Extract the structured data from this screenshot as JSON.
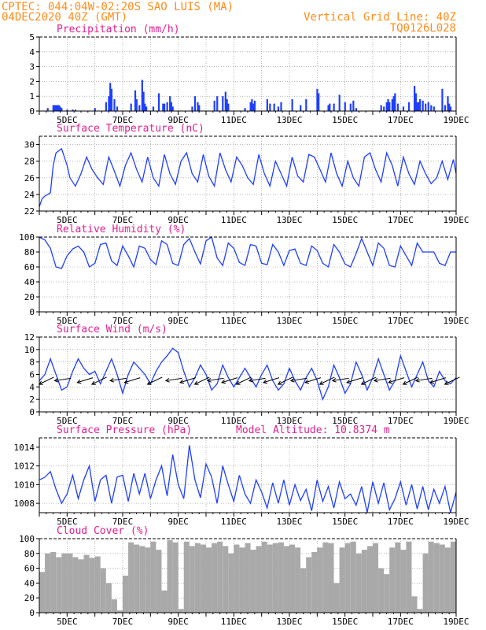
{
  "header": {
    "line1_left": "CPTEC:  044:04W-02:20S  SAO LUIS (MA)",
    "line2_left": "04DEC2020 40Z (GMT)",
    "line2_right": "Vertical Grid Line: 40Z",
    "line3_right": "TQ0126L028"
  },
  "colors": {
    "header": "#ff8c1a",
    "title": "#e0208f",
    "series": "#1f3fff",
    "cloud": "#a9a9a9",
    "grid": "#888888"
  },
  "chart_data": [
    {
      "id": "precip",
      "type": "bar",
      "title": "Precipitation (mm/h)",
      "ylim": [
        0,
        5
      ],
      "yticks": [
        0,
        1,
        2,
        3,
        4,
        5
      ],
      "xticks": [
        "5DEC",
        "7DEC",
        "9DEC",
        "11DEC",
        "13DEC",
        "15DEC",
        "17DEC",
        "19DEC"
      ],
      "x": [
        4.3,
        4.5,
        4.55,
        4.6,
        4.65,
        4.7,
        4.75,
        4.8,
        5.0,
        5.2,
        5.3,
        6.0,
        6.4,
        6.5,
        6.55,
        6.6,
        6.7,
        6.8,
        7.3,
        7.45,
        7.5,
        7.6,
        7.7,
        7.75,
        7.8,
        7.85,
        8.1,
        8.3,
        8.45,
        8.5,
        8.6,
        8.7,
        8.75,
        8.8,
        9.5,
        9.6,
        9.7,
        9.75,
        10.3,
        10.4,
        10.6,
        10.7,
        10.75,
        10.8,
        11.4,
        11.6,
        11.65,
        11.7,
        11.75,
        12.2,
        12.3,
        12.45,
        12.6,
        12.7,
        13.1,
        13.4,
        13.6,
        14.0,
        14.05,
        14.4,
        14.45,
        14.6,
        14.8,
        15.0,
        15.2,
        15.3,
        15.4,
        16.3,
        16.4,
        16.5,
        16.55,
        16.6,
        16.7,
        16.75,
        16.8,
        16.9,
        17.1,
        17.3,
        17.5,
        17.55,
        17.6,
        17.65,
        17.7,
        17.8,
        17.9,
        18.0,
        18.1,
        18.2,
        18.5,
        18.6,
        18.7,
        18.75,
        18.8
      ],
      "values": [
        0.2,
        0.4,
        0.4,
        0.4,
        0.4,
        0.4,
        0.3,
        0.2,
        0.1,
        0.1,
        0.1,
        0.2,
        0.6,
        1.0,
        1.9,
        1.5,
        0.8,
        0.3,
        0.5,
        1.4,
        0.8,
        0.4,
        2.1,
        1.3,
        0.5,
        0.3,
        0.3,
        1.2,
        0.5,
        0.5,
        0.6,
        1.0,
        0.6,
        0.3,
        0.3,
        1.0,
        0.6,
        0.4,
        0.7,
        1.0,
        1.0,
        1.3,
        0.8,
        0.5,
        0.2,
        0.6,
        0.8,
        0.5,
        0.7,
        0.8,
        0.5,
        0.5,
        0.3,
        0.6,
        0.8,
        0.4,
        0.8,
        1.5,
        1.2,
        0.4,
        0.5,
        0.5,
        1.1,
        0.6,
        0.5,
        0.7,
        0.2,
        0.4,
        0.3,
        0.6,
        0.8,
        0.6,
        0.8,
        1.0,
        1.2,
        0.5,
        0.3,
        0.6,
        1.7,
        1.2,
        0.6,
        0.6,
        0.8,
        0.7,
        0.5,
        0.6,
        0.4,
        0.3,
        1.5,
        0.4,
        1.0,
        0.5,
        0.3
      ]
    },
    {
      "id": "temp",
      "type": "line",
      "title": "Surface Temperature (nC)",
      "ylim": [
        22,
        31
      ],
      "yticks": [
        22,
        24,
        26,
        28,
        30
      ],
      "xticks": [
        "5DEC",
        "7DEC",
        "9DEC",
        "11DEC",
        "13DEC",
        "15DEC",
        "17DEC",
        "19DEC"
      ],
      "x": [
        4.0,
        4.1,
        4.2,
        4.3,
        4.4,
        4.5,
        4.6,
        4.8,
        5.0,
        5.1,
        5.3,
        5.5,
        5.7,
        5.9,
        6.1,
        6.3,
        6.5,
        6.7,
        6.9,
        7.1,
        7.3,
        7.5,
        7.7,
        7.9,
        8.1,
        8.3,
        8.5,
        8.7,
        8.9,
        9.1,
        9.3,
        9.5,
        9.7,
        9.9,
        10.1,
        10.3,
        10.5,
        10.7,
        10.9,
        11.1,
        11.3,
        11.5,
        11.7,
        11.9,
        12.1,
        12.3,
        12.5,
        12.7,
        12.9,
        13.1,
        13.3,
        13.5,
        13.7,
        13.9,
        14.1,
        14.3,
        14.5,
        14.7,
        14.9,
        15.1,
        15.3,
        15.5,
        15.7,
        15.9,
        16.1,
        16.3,
        16.5,
        16.7,
        16.9,
        17.1,
        17.3,
        17.5,
        17.7,
        17.9,
        18.1,
        18.3,
        18.5,
        18.7,
        18.9,
        19.0
      ],
      "values": [
        22.5,
        23.5,
        23.8,
        24.0,
        24.2,
        27.5,
        29.0,
        29.5,
        27.5,
        26.0,
        25.0,
        26.5,
        28.5,
        27.0,
        26.0,
        25.2,
        28.5,
        26.8,
        25.0,
        27.5,
        29.0,
        27.0,
        25.5,
        28.5,
        26.0,
        25.0,
        28.8,
        26.5,
        25.2,
        28.0,
        29.0,
        26.5,
        25.5,
        28.8,
        26.2,
        25.0,
        29.0,
        27.0,
        25.5,
        28.5,
        27.5,
        26.0,
        25.2,
        28.8,
        26.5,
        25.0,
        28.0,
        26.5,
        25.0,
        28.5,
        26.2,
        25.5,
        28.8,
        28.5,
        27.0,
        25.5,
        29.0,
        26.5,
        25.0,
        28.0,
        26.0,
        25.0,
        28.5,
        29.0,
        27.0,
        25.5,
        29.0,
        27.5,
        25.0,
        28.5,
        26.5,
        25.2,
        28.0,
        26.5,
        25.3,
        26.0,
        28.0,
        25.8,
        28.2,
        26.5
      ]
    },
    {
      "id": "rh",
      "type": "line",
      "title": "Relative Humidity (%)",
      "ylim": [
        0,
        100
      ],
      "yticks": [
        0,
        20,
        40,
        60,
        80,
        100
      ],
      "xticks": [
        "5DEC",
        "7DEC",
        "9DEC",
        "11DEC",
        "13DEC",
        "15DEC",
        "17DEC",
        "19DEC"
      ],
      "x": [
        4.0,
        4.2,
        4.4,
        4.6,
        4.8,
        5.0,
        5.2,
        5.4,
        5.6,
        5.8,
        6.0,
        6.2,
        6.4,
        6.6,
        6.8,
        7.0,
        7.2,
        7.4,
        7.6,
        7.8,
        8.0,
        8.2,
        8.4,
        8.6,
        8.8,
        9.0,
        9.2,
        9.4,
        9.6,
        9.8,
        10.0,
        10.2,
        10.4,
        10.6,
        10.8,
        11.0,
        11.2,
        11.4,
        11.6,
        11.8,
        12.0,
        12.2,
        12.4,
        12.6,
        12.8,
        13.0,
        13.2,
        13.4,
        13.6,
        13.8,
        14.0,
        14.2,
        14.4,
        14.6,
        14.8,
        15.0,
        15.2,
        15.4,
        15.6,
        15.8,
        16.0,
        16.2,
        16.4,
        16.6,
        16.8,
        17.0,
        17.2,
        17.4,
        17.6,
        17.8,
        18.0,
        18.2,
        18.4,
        18.6,
        18.8,
        19.0
      ],
      "values": [
        100,
        96,
        85,
        60,
        58,
        75,
        84,
        88,
        80,
        60,
        65,
        90,
        92,
        68,
        62,
        88,
        75,
        60,
        88,
        85,
        70,
        63,
        95,
        90,
        65,
        62,
        90,
        98,
        80,
        64,
        95,
        100,
        72,
        62,
        92,
        85,
        66,
        62,
        90,
        88,
        65,
        63,
        90,
        80,
        62,
        82,
        84,
        65,
        62,
        88,
        82,
        65,
        60,
        90,
        80,
        64,
        60,
        78,
        98,
        80,
        62,
        92,
        85,
        62,
        60,
        88,
        75,
        62,
        92,
        80,
        80,
        80,
        65,
        62,
        80,
        80
      ]
    },
    {
      "id": "wind",
      "type": "line",
      "title": "Surface Wind (m/s)",
      "ylim": [
        0,
        12
      ],
      "yticks": [
        0,
        2,
        4,
        6,
        8,
        10,
        12
      ],
      "xticks": [
        "5DEC",
        "7DEC",
        "9DEC",
        "11DEC",
        "13DEC",
        "15DEC",
        "17DEC",
        "19DEC"
      ],
      "x": [
        4.0,
        4.2,
        4.4,
        4.6,
        4.8,
        5.0,
        5.2,
        5.4,
        5.6,
        5.8,
        6.0,
        6.2,
        6.4,
        6.6,
        6.8,
        7.0,
        7.2,
        7.4,
        7.6,
        7.8,
        8.0,
        8.2,
        8.4,
        8.6,
        8.8,
        9.0,
        9.2,
        9.4,
        9.6,
        9.8,
        10.0,
        10.2,
        10.4,
        10.6,
        10.8,
        11.0,
        11.2,
        11.4,
        11.6,
        11.8,
        12.0,
        12.2,
        12.4,
        12.6,
        12.8,
        13.0,
        13.2,
        13.4,
        13.6,
        13.8,
        14.0,
        14.2,
        14.4,
        14.6,
        14.8,
        15.0,
        15.2,
        15.4,
        15.6,
        15.8,
        16.0,
        16.2,
        16.4,
        16.6,
        16.8,
        17.0,
        17.2,
        17.4,
        17.6,
        17.8,
        18.0,
        18.2,
        18.4,
        18.6,
        18.8,
        19.0
      ],
      "values": [
        5.0,
        6.0,
        8.5,
        6.0,
        3.5,
        4.0,
        6.5,
        8.5,
        7.0,
        6.0,
        6.5,
        4.5,
        6.5,
        8.5,
        6.0,
        3.0,
        6.0,
        8.0,
        7.0,
        6.0,
        4.5,
        6.5,
        8.0,
        9.0,
        10.2,
        9.5,
        6.5,
        4.0,
        5.5,
        7.5,
        6.0,
        3.5,
        4.5,
        7.5,
        5.5,
        4.0,
        5.5,
        7.0,
        5.5,
        4.0,
        6.0,
        7.5,
        5.0,
        3.5,
        4.5,
        7.0,
        5.0,
        3.5,
        5.5,
        7.0,
        5.0,
        2.0,
        4.0,
        7.5,
        5.5,
        3.0,
        4.5,
        8.0,
        6.0,
        3.5,
        5.5,
        8.5,
        6.0,
        3.5,
        5.0,
        9.0,
        6.5,
        4.0,
        6.0,
        8.0,
        5.0,
        4.0,
        6.5,
        5.0,
        4.5,
        5.5
      ],
      "arrows_x": [
        4.4,
        5.0,
        5.8,
        6.3,
        7.0,
        7.5,
        8.3,
        9.0,
        9.5,
        10.0,
        10.5,
        11.0,
        11.5,
        12.0,
        12.5,
        13.0,
        13.5,
        14.0,
        14.5,
        15.0,
        15.5,
        16.0,
        16.5,
        17.0,
        17.5,
        18.0,
        18.5,
        19.0
      ]
    },
    {
      "id": "pres",
      "type": "line",
      "title": "Surface Pressure (hPa)",
      "subtitle": "Model Altitude: 10.8374 m",
      "ylim": [
        1007,
        1015
      ],
      "yticks": [
        1008,
        1010,
        1012,
        1014
      ],
      "xticks": [
        "5DEC",
        "7DEC",
        "9DEC",
        "11DEC",
        "13DEC",
        "15DEC",
        "17DEC",
        "19DEC"
      ],
      "x": [
        4.0,
        4.2,
        4.4,
        4.6,
        4.8,
        5.0,
        5.2,
        5.4,
        5.6,
        5.8,
        6.0,
        6.2,
        6.4,
        6.6,
        6.8,
        7.0,
        7.2,
        7.4,
        7.6,
        7.8,
        8.0,
        8.2,
        8.4,
        8.6,
        8.8,
        9.0,
        9.2,
        9.4,
        9.6,
        9.8,
        10.0,
        10.2,
        10.4,
        10.6,
        10.8,
        11.0,
        11.2,
        11.4,
        11.6,
        11.8,
        12.0,
        12.2,
        12.4,
        12.6,
        12.8,
        13.0,
        13.2,
        13.4,
        13.6,
        13.8,
        14.0,
        14.2,
        14.4,
        14.6,
        14.8,
        15.0,
        15.2,
        15.4,
        15.6,
        15.8,
        16.0,
        16.2,
        16.4,
        16.6,
        16.8,
        17.0,
        17.2,
        17.4,
        17.6,
        17.8,
        18.0,
        18.2,
        18.4,
        18.6,
        18.8,
        19.0
      ],
      "values": [
        1010.5,
        1010.8,
        1011.4,
        1009.5,
        1008.0,
        1009.0,
        1011.0,
        1008.5,
        1010.5,
        1012.0,
        1008.2,
        1010.5,
        1011.0,
        1008.0,
        1010.8,
        1011.0,
        1008.2,
        1011.2,
        1009.0,
        1011.2,
        1008.5,
        1010.5,
        1012.0,
        1008.8,
        1013.2,
        1010.0,
        1008.5,
        1014.2,
        1010.5,
        1008.6,
        1012.2,
        1010.8,
        1008.0,
        1012.0,
        1010.0,
        1008.2,
        1011.0,
        1009.0,
        1008.0,
        1010.5,
        1009.2,
        1007.5,
        1010.2,
        1008.0,
        1010.5,
        1007.8,
        1010.0,
        1008.3,
        1009.5,
        1007.2,
        1010.5,
        1008.2,
        1009.8,
        1007.5,
        1010.3,
        1008.5,
        1009.0,
        1007.8,
        1009.8,
        1007.0,
        1010.3,
        1008.0,
        1010.2,
        1007.3,
        1008.5,
        1010.3,
        1007.8,
        1010.0,
        1007.4,
        1009.8,
        1007.3,
        1009.5,
        1008.0,
        1009.8,
        1007.0,
        1009.2
      ]
    },
    {
      "id": "cloud",
      "type": "bar",
      "title": "Cloud Cover (%)",
      "ylim": [
        0,
        100
      ],
      "yticks": [
        0,
        20,
        40,
        60,
        80,
        100
      ],
      "xticks": [
        "5DEC",
        "7DEC",
        "9DEC",
        "11DEC",
        "13DEC",
        "15DEC",
        "17DEC",
        "19DEC"
      ],
      "x": [
        4.0,
        4.2,
        4.4,
        4.6,
        4.8,
        5.0,
        5.2,
        5.4,
        5.6,
        5.8,
        6.0,
        6.2,
        6.4,
        6.6,
        6.8,
        7.0,
        7.2,
        7.4,
        7.6,
        7.8,
        8.0,
        8.2,
        8.4,
        8.6,
        8.8,
        9.0,
        9.2,
        9.4,
        9.6,
        9.8,
        10.0,
        10.2,
        10.4,
        10.6,
        10.8,
        11.0,
        11.2,
        11.4,
        11.6,
        11.8,
        12.0,
        12.2,
        12.4,
        12.6,
        12.8,
        13.0,
        13.2,
        13.4,
        13.6,
        13.8,
        14.0,
        14.2,
        14.4,
        14.6,
        14.8,
        15.0,
        15.2,
        15.4,
        15.6,
        15.8,
        16.0,
        16.2,
        16.4,
        16.6,
        16.8,
        17.0,
        17.2,
        17.4,
        17.6,
        17.8,
        18.0,
        18.2,
        18.4,
        18.6,
        18.8,
        19.0
      ],
      "values": [
        55,
        80,
        82,
        75,
        80,
        80,
        75,
        72,
        78,
        74,
        76,
        60,
        40,
        18,
        3,
        50,
        95,
        92,
        90,
        88,
        96,
        85,
        30,
        98,
        95,
        5,
        96,
        90,
        94,
        92,
        88,
        94,
        96,
        90,
        80,
        92,
        88,
        94,
        85,
        90,
        96,
        92,
        94,
        95,
        90,
        92,
        88,
        60,
        75,
        82,
        88,
        95,
        94,
        40,
        88,
        94,
        96,
        80,
        85,
        90,
        94,
        60,
        52,
        88,
        95,
        85,
        96,
        22,
        5,
        80,
        96,
        94,
        92,
        88,
        96,
        95
      ]
    }
  ]
}
